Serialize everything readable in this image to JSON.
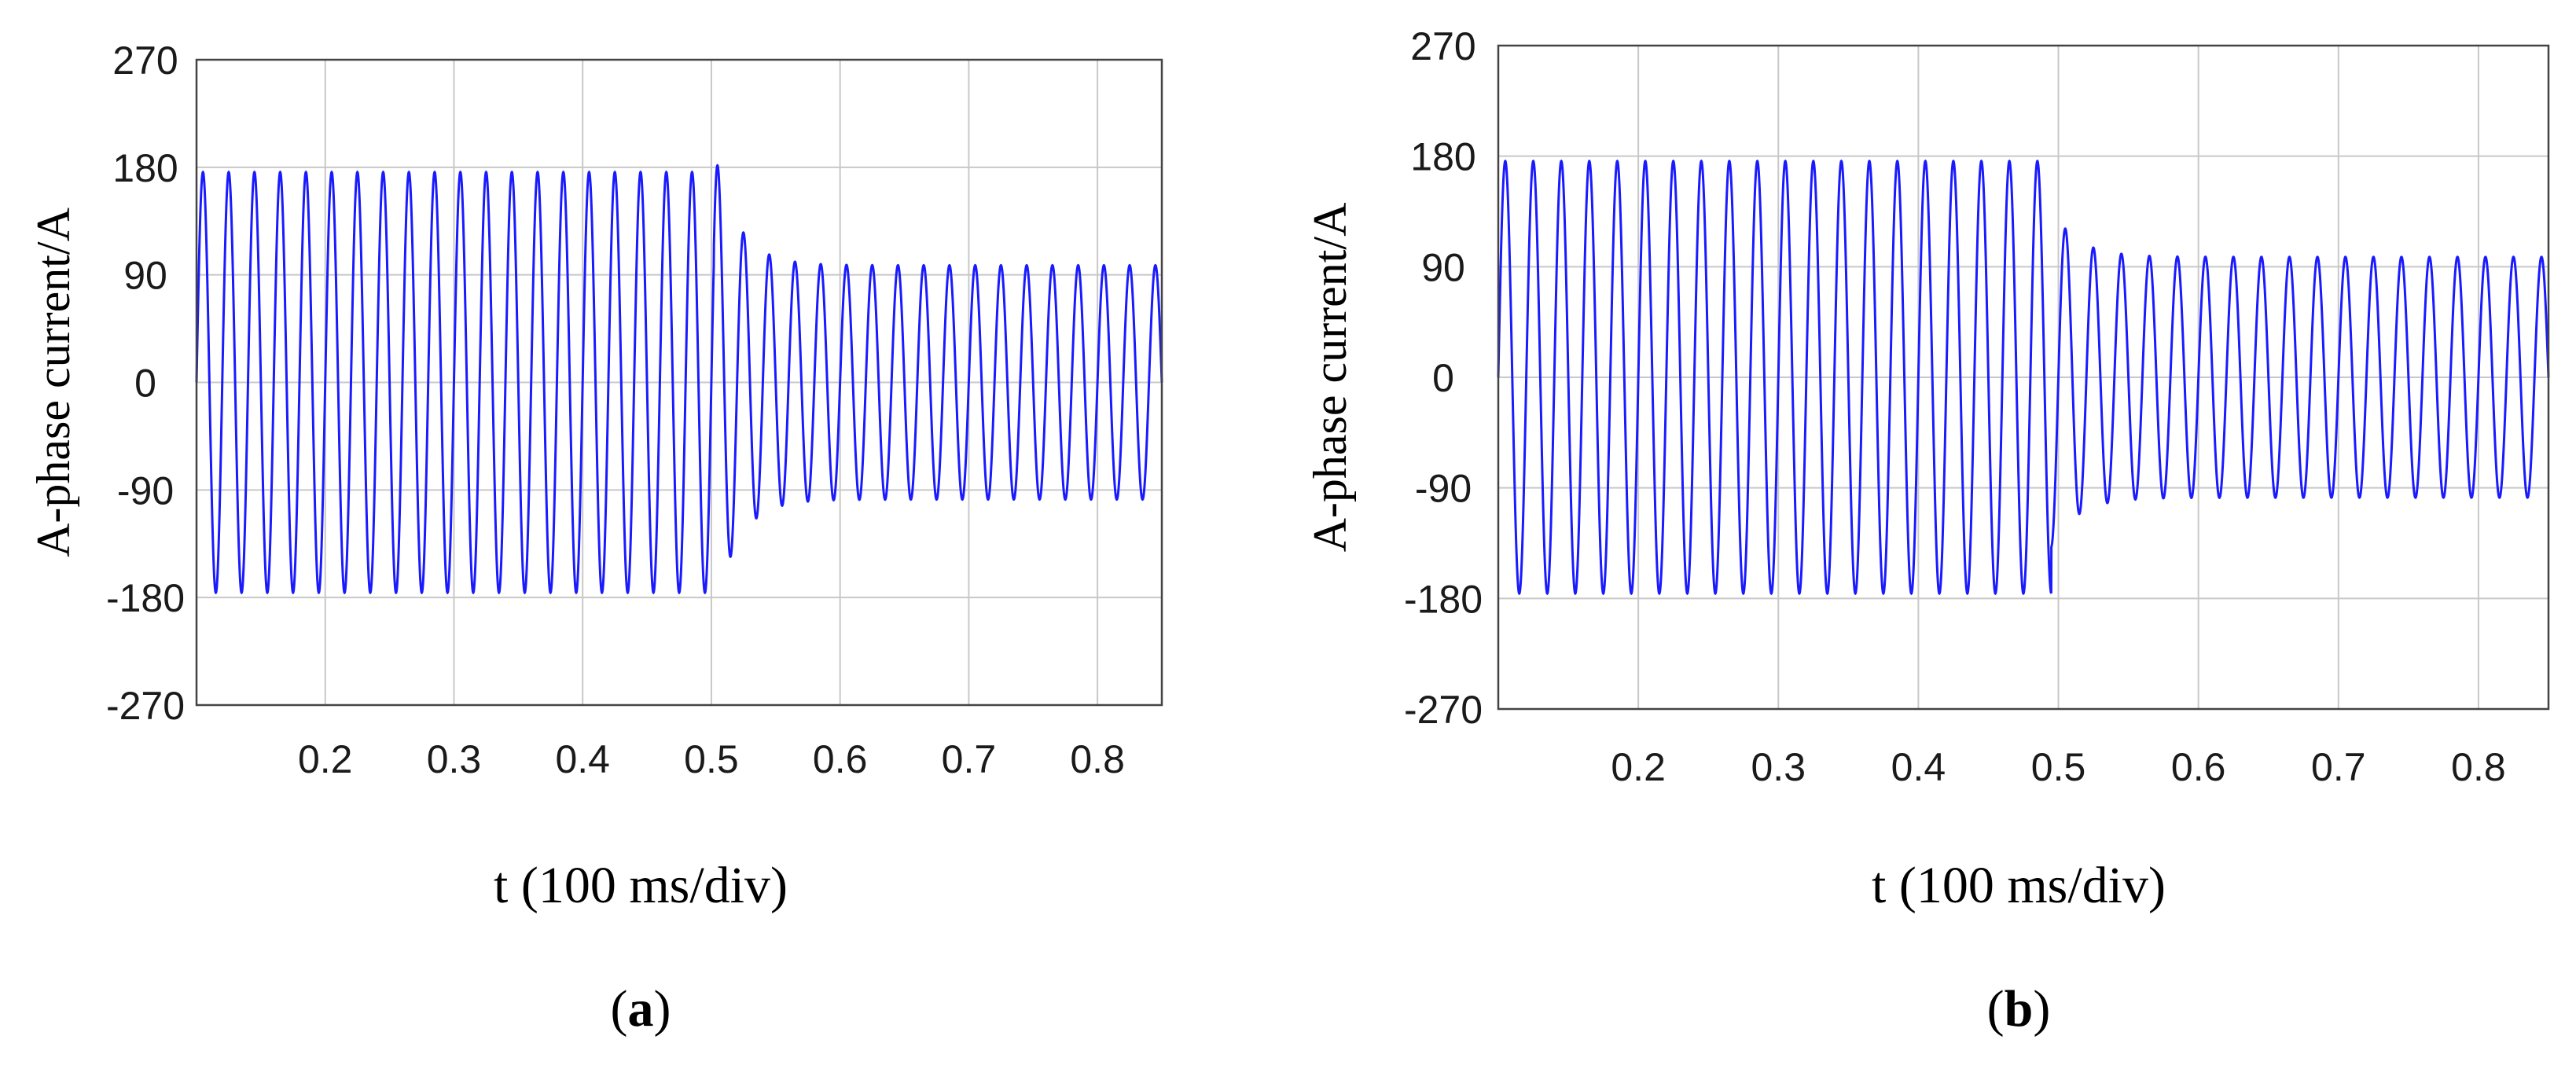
{
  "chart_data": [
    {
      "type": "line",
      "panel_label": "a",
      "xlabel": "t (100 ms/div)",
      "ylabel": "A-phase current/A",
      "xlim": [
        0.1,
        0.85
      ],
      "ylim": [
        -270,
        270
      ],
      "xticks": [
        0.2,
        0.3,
        0.4,
        0.5,
        0.6,
        0.7,
        0.8
      ],
      "xtick_labels": [
        "0.2",
        "0.3",
        "0.4",
        "0.5",
        "0.6",
        "0.7",
        "0.8"
      ],
      "yticks": [
        270,
        180,
        90,
        0,
        -90,
        -180,
        -270
      ],
      "ytick_labels": [
        "270",
        "180",
        "90",
        "0",
        "-90",
        "-180",
        "-270"
      ],
      "grid": true,
      "series": [
        {
          "name": "A-phase current",
          "color": "#1a1aff",
          "waveform": {
            "frequency_hz": 50,
            "amplitude_before": 176,
            "amplitude_after": 98,
            "step_time": 0.502,
            "transient_peak": 196,
            "transient_trough": -189,
            "offset_after": 0,
            "t_start": 0.1,
            "t_end": 0.85
          }
        }
      ]
    },
    {
      "type": "line",
      "panel_label": "b",
      "xlabel": "t (100 ms/div)",
      "ylabel": "A-phase current/A",
      "xlim": [
        0.1,
        0.85
      ],
      "ylim": [
        -270,
        270
      ],
      "xticks": [
        0.2,
        0.3,
        0.4,
        0.5,
        0.6,
        0.7,
        0.8
      ],
      "xtick_labels": [
        "0.2",
        "0.3",
        "0.4",
        "0.5",
        "0.6",
        "0.7",
        "0.8"
      ],
      "yticks": [
        270,
        180,
        90,
        0,
        -90,
        -180,
        -270
      ],
      "ytick_labels": [
        "270",
        "180",
        "90",
        "0",
        "-90",
        "-180",
        "-270"
      ],
      "grid": true,
      "series": [
        {
          "name": "A-phase current",
          "color": "#1a1aff",
          "waveform": {
            "frequency_hz": 50,
            "amplitude_before": 176,
            "amplitude_after": 98,
            "step_time": 0.495,
            "transient_peak": 138,
            "transient_trough": -120,
            "offset_after": 0,
            "t_start": 0.1,
            "t_end": 0.85
          }
        }
      ]
    }
  ]
}
